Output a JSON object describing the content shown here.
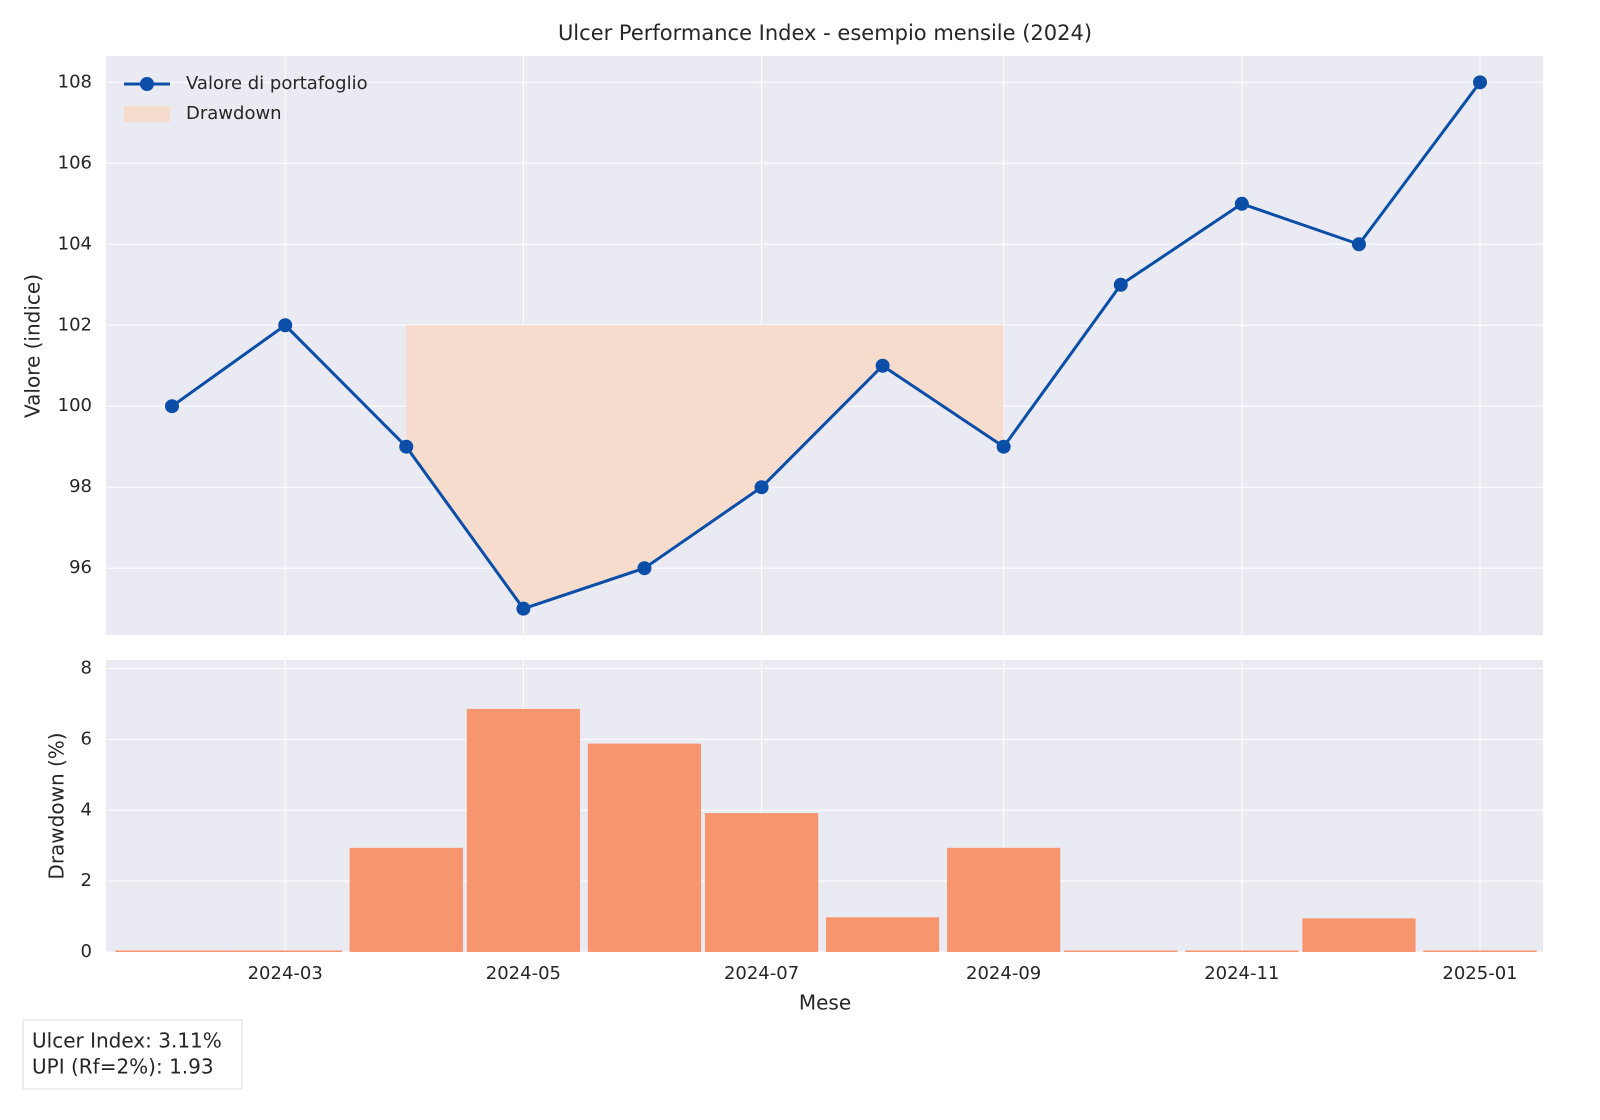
{
  "chart_data": [
    {
      "type": "line",
      "title": "Ulcer Performance Index - esempio mensile (2024)",
      "ylabel": "Valore (indice)",
      "x": [
        "2024-02",
        "2024-03",
        "2024-04",
        "2024-05",
        "2024-06",
        "2024-07",
        "2024-08",
        "2024-09",
        "2024-10",
        "2024-11",
        "2024-12",
        "2025-01"
      ],
      "series": [
        {
          "name": "Valore di portafoglio",
          "color": "#0b4ea8",
          "values": [
            100,
            102,
            99,
            95,
            96,
            98,
            101,
            99,
            103,
            105,
            104,
            108
          ]
        }
      ],
      "fill": {
        "name": "Drawdown",
        "color": "#f5dccd"
      },
      "xlim": [
        "2024-02",
        "2025-01"
      ],
      "xticks": [
        "2024-03",
        "2024-05",
        "2024-07",
        "2024-09",
        "2024-11",
        "2025-01"
      ],
      "ylim": [
        94.35,
        108.65
      ],
      "yticks": [
        96,
        98,
        100,
        102,
        104,
        106,
        108
      ],
      "grid": true,
      "legend": "upper left"
    },
    {
      "type": "bar",
      "ylabel": "Drawdown (%)",
      "xlabel": "Mese",
      "x": [
        "2024-02",
        "2024-03",
        "2024-04",
        "2024-05",
        "2024-06",
        "2024-07",
        "2024-08",
        "2024-09",
        "2024-10",
        "2024-11",
        "2024-12",
        "2025-01"
      ],
      "values": [
        0,
        0,
        2.94,
        6.86,
        5.88,
        3.92,
        0.98,
        2.94,
        0,
        0,
        0.95,
        0
      ],
      "color": "#f7956f",
      "xlim": [
        "2024-02",
        "2025-01"
      ],
      "xticks": [
        "2024-03",
        "2024-05",
        "2024-07",
        "2024-09",
        "2024-11",
        "2025-01"
      ],
      "ylim": [
        0,
        8.24
      ],
      "yticks": [
        0,
        2,
        4,
        6,
        8
      ],
      "grid": true
    }
  ],
  "annotations": [
    "Ulcer Index: 3.11%",
    "UPI (Rf=2%): 1.93"
  ]
}
